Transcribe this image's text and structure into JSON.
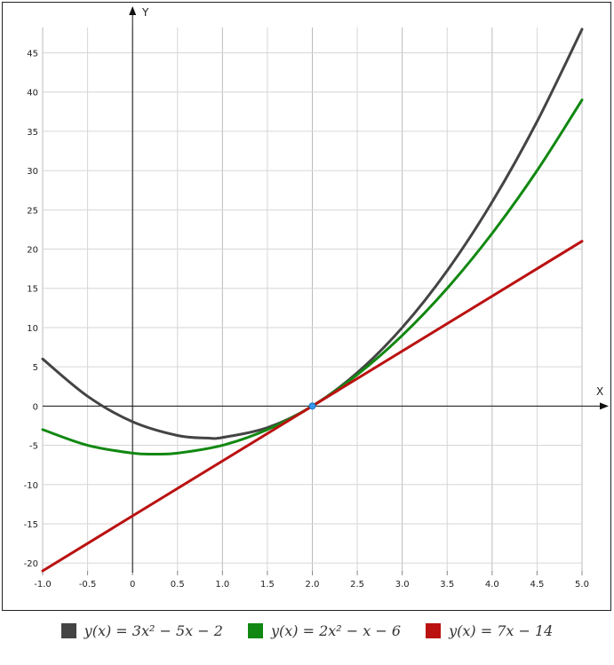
{
  "chart_data": {
    "type": "line",
    "xlabel": "X",
    "ylabel": "Y",
    "xlim": [
      -1.0,
      5.0
    ],
    "ylim": [
      -21,
      48
    ],
    "x_ticks": [
      "-1.0",
      "-0.5",
      "0",
      "0.5",
      "1.0",
      "1.5",
      "2.0",
      "2.5",
      "3.0",
      "3.5",
      "4.0",
      "4.5",
      "5.0"
    ],
    "y_ticks": [
      "45",
      "40",
      "35",
      "30",
      "25",
      "20",
      "15",
      "10",
      "5",
      "0",
      "-5",
      "-10",
      "-15",
      "-20"
    ],
    "grid": true,
    "legend_position": "bottom",
    "series": [
      {
        "name": "y(x) = 3x² − 5x − 2",
        "color": "#444444",
        "points": [
          [
            -1.0,
            6
          ],
          [
            -0.5,
            1.25
          ],
          [
            0,
            -2
          ],
          [
            0.5,
            -3.75
          ],
          [
            0.833,
            -4.08
          ],
          [
            1.0,
            -4
          ],
          [
            1.5,
            -2.75
          ],
          [
            2.0,
            0
          ],
          [
            2.5,
            4.25
          ],
          [
            3.0,
            10
          ],
          [
            3.5,
            17.25
          ],
          [
            4.0,
            26
          ],
          [
            4.5,
            36.25
          ],
          [
            5.0,
            48
          ]
        ]
      },
      {
        "name": "y(x) = 2x² − x − 6",
        "color": "#118811",
        "points": [
          [
            -1.0,
            -3
          ],
          [
            -0.5,
            -5
          ],
          [
            0,
            -6
          ],
          [
            0.25,
            -6.125
          ],
          [
            0.5,
            -6
          ],
          [
            1.0,
            -5
          ],
          [
            1.5,
            -3
          ],
          [
            2.0,
            0
          ],
          [
            2.5,
            4
          ],
          [
            3.0,
            9
          ],
          [
            3.5,
            15
          ],
          [
            4.0,
            22
          ],
          [
            4.5,
            30
          ],
          [
            5.0,
            39
          ]
        ]
      },
      {
        "name": "y(x) = 7x − 14",
        "color": "#bb1111",
        "points": [
          [
            -1.0,
            -21
          ],
          [
            5.0,
            21
          ]
        ]
      }
    ],
    "annotations": [
      {
        "type": "point",
        "x": 2.0,
        "y": 0,
        "color": "#3399ee"
      }
    ]
  }
}
